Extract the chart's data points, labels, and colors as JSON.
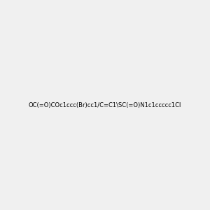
{
  "smiles": "OC(=O)COc1ccc(Br)cc1/C=C1\\SC(=O)N1c1ccccc1Cl",
  "title": "",
  "bg_color": "#f0f0f0",
  "fig_width": 3.0,
  "fig_height": 3.0,
  "dpi": 100,
  "atom_colors": {
    "O": "#ff0000",
    "N": "#0000ff",
    "S": "#ccaa00",
    "Cl": "#00cc00",
    "Br": "#cc6600",
    "H": "#777777",
    "C": "#000000"
  }
}
